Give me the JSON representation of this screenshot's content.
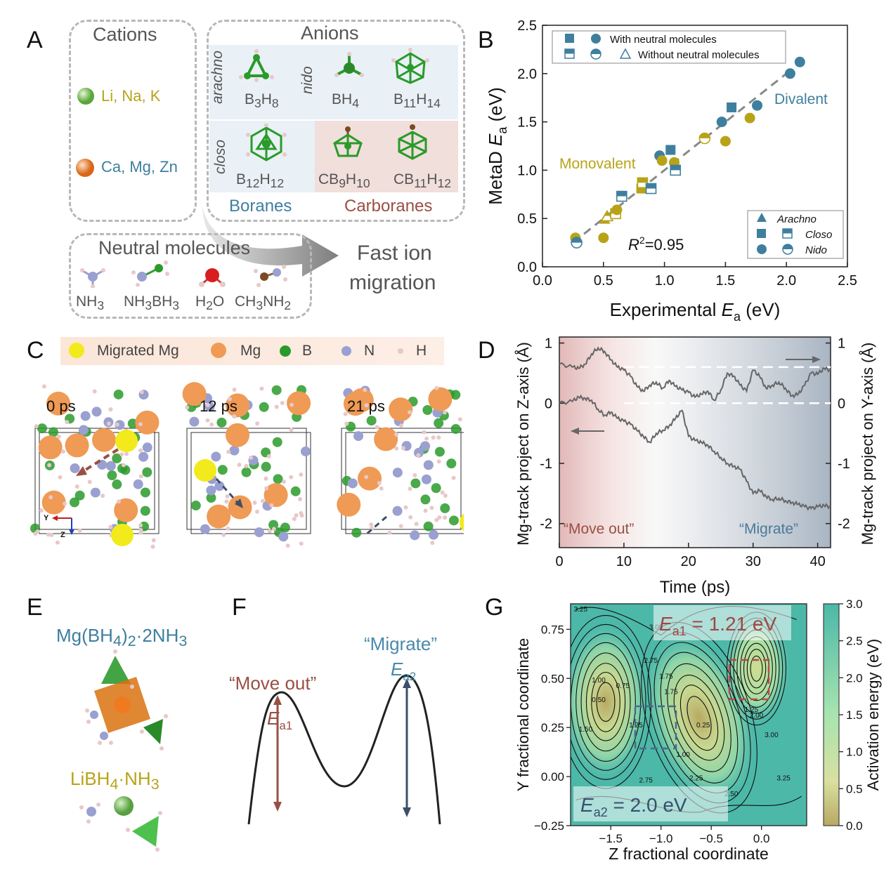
{
  "panel_labels": {
    "a": "A",
    "b": "B",
    "c": "C",
    "d": "D",
    "e": "E",
    "f": "F",
    "g": "G"
  },
  "panel_a": {
    "cations_title": "Cations",
    "cation_mono": "Li, Na, K",
    "cation_di": "Ca, Mg, Zn",
    "anions_title": "Anions",
    "row_arachno": "arachno",
    "row_nido": "nido",
    "row_closo": "closo",
    "anions": [
      {
        "base": "B",
        "sub1": "3",
        "mid": "H",
        "sub2": "8"
      },
      {
        "base": "BH",
        "sub1": "4",
        "mid": "",
        "sub2": ""
      },
      {
        "base": "B",
        "sub1": "11",
        "mid": "H",
        "sub2": "14"
      },
      {
        "base": "B",
        "sub1": "12",
        "mid": "H",
        "sub2": "12"
      },
      {
        "base": "CB",
        "sub1": "9",
        "mid": "H",
        "sub2": "10"
      },
      {
        "base": "CB",
        "sub1": "11",
        "mid": "H",
        "sub2": "12"
      }
    ],
    "boranes": "Boranes",
    "carboranes": "Carboranes",
    "neutral_title": "Neutral molecules",
    "neutral": [
      {
        "a": "NH",
        "s1": "3",
        "b": "",
        "s2": ""
      },
      {
        "a": "NH",
        "s1": "3",
        "b": "BH",
        "s2": "3"
      },
      {
        "a": "H",
        "s1": "2",
        "b": "O",
        "s2": ""
      },
      {
        "a": "CH",
        "s1": "3",
        "b": "NH",
        "s2": "2"
      }
    ],
    "fast_line1": "Fast ion",
    "fast_line2": "migration"
  },
  "panel_b": {
    "chart_data": {
      "type": "scatter",
      "xlabel_main": "Experimental ",
      "xlabel_var": "E",
      "xlabel_sub": "a",
      "xlabel_unit": " (eV)",
      "ylabel_main": "MetaD ",
      "ylabel_var": "E",
      "ylabel_sub": "a",
      "ylabel_unit": " (eV)",
      "xlim": [
        0,
        2.5
      ],
      "ylim": [
        0,
        2.5
      ],
      "xticks": [
        "0.0",
        "0.5",
        "1.0",
        "1.5",
        "2.0",
        "2.5"
      ],
      "yticks": [
        "0.0",
        "0.5",
        "1.0",
        "1.5",
        "2.0",
        "2.5"
      ],
      "r2_text_a": "R",
      "r2_text_b": "2",
      "r2_text_c": "=0.95",
      "label_monovalent": "Monovalent",
      "label_divalent": "Divalent",
      "legend_top": [
        "With neutral molecules",
        "Without neutral molecules"
      ],
      "legend_bottom": [
        "Arachno",
        "Closo",
        "Nido"
      ],
      "colors": {
        "mono": "#b8a318",
        "di": "#3e7f9e"
      },
      "fit_line": [
        [
          0.25,
          0.25
        ],
        [
          2.05,
          2.05
        ]
      ],
      "points": [
        {
          "x": 0.27,
          "y": 0.3,
          "shape": "circle",
          "fill": "full",
          "group": "mono"
        },
        {
          "x": 0.28,
          "y": 0.25,
          "shape": "circle",
          "fill": "half",
          "group": "di"
        },
        {
          "x": 0.5,
          "y": 0.3,
          "shape": "circle",
          "fill": "full",
          "group": "mono"
        },
        {
          "x": 0.51,
          "y": 0.49,
          "shape": "triangle",
          "fill": "full",
          "group": "mono"
        },
        {
          "x": 0.53,
          "y": 0.52,
          "shape": "triangle",
          "fill": "half",
          "group": "mono"
        },
        {
          "x": 0.6,
          "y": 0.55,
          "shape": "square",
          "fill": "half",
          "group": "mono"
        },
        {
          "x": 0.61,
          "y": 0.59,
          "shape": "circle",
          "fill": "full",
          "group": "mono"
        },
        {
          "x": 0.65,
          "y": 0.73,
          "shape": "square",
          "fill": "half",
          "group": "di"
        },
        {
          "x": 0.81,
          "y": 0.81,
          "shape": "square",
          "fill": "full",
          "group": "mono"
        },
        {
          "x": 0.82,
          "y": 0.87,
          "shape": "square",
          "fill": "half",
          "group": "mono"
        },
        {
          "x": 0.89,
          "y": 0.81,
          "shape": "square",
          "fill": "half",
          "group": "di"
        },
        {
          "x": 0.96,
          "y": 1.15,
          "shape": "circle",
          "fill": "full",
          "group": "di"
        },
        {
          "x": 0.98,
          "y": 1.1,
          "shape": "circle",
          "fill": "full",
          "group": "mono"
        },
        {
          "x": 1.05,
          "y": 1.21,
          "shape": "square",
          "fill": "full",
          "group": "di"
        },
        {
          "x": 1.08,
          "y": 1.08,
          "shape": "circle",
          "fill": "full",
          "group": "mono"
        },
        {
          "x": 1.09,
          "y": 1.0,
          "shape": "square",
          "fill": "half",
          "group": "di"
        },
        {
          "x": 1.33,
          "y": 1.33,
          "shape": "circle",
          "fill": "half",
          "group": "mono"
        },
        {
          "x": 1.47,
          "y": 1.5,
          "shape": "circle",
          "fill": "full",
          "group": "di"
        },
        {
          "x": 1.5,
          "y": 1.3,
          "shape": "circle",
          "fill": "full",
          "group": "mono"
        },
        {
          "x": 1.55,
          "y": 1.65,
          "shape": "square",
          "fill": "full",
          "group": "di"
        },
        {
          "x": 1.7,
          "y": 1.54,
          "shape": "circle",
          "fill": "full",
          "group": "mono"
        },
        {
          "x": 1.76,
          "y": 1.67,
          "shape": "circle",
          "fill": "full",
          "group": "di"
        },
        {
          "x": 2.03,
          "y": 2.0,
          "shape": "circle",
          "fill": "full",
          "group": "di"
        },
        {
          "x": 2.11,
          "y": 2.12,
          "shape": "circle",
          "fill": "full",
          "group": "di"
        }
      ]
    }
  },
  "panel_c": {
    "legend": [
      "Migrated Mg",
      "Mg",
      "B",
      "N",
      "H"
    ],
    "times": [
      "0 ps",
      "12 ps",
      "21 ps"
    ],
    "axis_y": "Y",
    "axis_z": "Z"
  },
  "panel_d": {
    "chart_data": {
      "type": "line",
      "xlabel": "Time (ps)",
      "ylabel_left": "Mg-track project on Z-axis (Å)",
      "ylabel_right": "Mg-track project on Y-axis (Å)",
      "xlim": [
        0,
        42
      ],
      "ylim": [
        -2.4,
        1.1
      ],
      "xticks": [
        "0",
        "10",
        "20",
        "30",
        "40"
      ],
      "yticks_left": [
        "1",
        "0",
        "-1",
        "-2"
      ],
      "yticks_right": [
        "1",
        "0",
        "-1",
        "-2"
      ],
      "label_move_out": "“Move out”",
      "label_migrate": "“Migrate”",
      "dashed_levels": [
        0.6,
        0.0
      ],
      "series": [
        {
          "axis": "right",
          "x": [
            0,
            2,
            3,
            4,
            5,
            6,
            7,
            8,
            9,
            10,
            11,
            12,
            13,
            14,
            15,
            16,
            17,
            18,
            19,
            20,
            21,
            22,
            23,
            24,
            25,
            26,
            27,
            28,
            29,
            30,
            31,
            32,
            33,
            34,
            35,
            36,
            37,
            38,
            39,
            40,
            41,
            42
          ],
          "y": [
            0.65,
            0.6,
            0.58,
            0.65,
            0.82,
            0.92,
            0.86,
            0.72,
            0.6,
            0.55,
            0.45,
            0.28,
            0.2,
            0.3,
            0.35,
            0.25,
            0.38,
            0.28,
            0.22,
            0.18,
            0.1,
            0.15,
            0.2,
            0.05,
            0.22,
            0.5,
            0.45,
            0.3,
            0.2,
            0.55,
            0.45,
            0.25,
            0.3,
            0.35,
            0.25,
            0.12,
            0.15,
            0.3,
            0.5,
            0.48,
            0.58,
            0.55
          ]
        },
        {
          "axis": "left",
          "x": [
            0,
            2,
            3,
            4,
            5,
            6,
            7,
            8,
            9,
            10,
            11,
            12,
            13,
            14,
            15,
            16,
            17,
            18,
            19,
            20,
            21,
            22,
            23,
            24,
            25,
            26,
            27,
            28,
            29,
            30,
            31,
            32,
            33,
            34,
            35,
            36,
            37,
            38,
            39,
            40,
            41,
            42
          ],
          "y": [
            0.0,
            0.03,
            0.1,
            0.08,
            0.05,
            -0.1,
            -0.2,
            -0.15,
            -0.25,
            -0.3,
            -0.35,
            -0.45,
            -0.55,
            -0.65,
            -0.5,
            -0.45,
            -0.38,
            -0.25,
            -0.12,
            -0.55,
            -0.62,
            -0.65,
            -0.7,
            -0.8,
            -0.9,
            -1.0,
            -1.05,
            -1.1,
            -1.3,
            -1.5,
            -1.45,
            -1.55,
            -1.6,
            -1.58,
            -1.62,
            -1.65,
            -1.68,
            -1.72,
            -1.75,
            -1.72,
            -1.7,
            -1.72
          ]
        }
      ],
      "colors": {
        "line": "#666666",
        "move_out_bg": "#d9a0a0",
        "migrate_bg": "#9aa8b8"
      }
    }
  },
  "panel_e": {
    "formula1": {
      "a": "Mg(BH",
      "s1": "4",
      "b": ")",
      "s2": "2",
      "c": "·2NH",
      "s3": "3"
    },
    "formula2": {
      "a": "LiBH",
      "s1": "4",
      "b": "·NH",
      "s2": "3"
    }
  },
  "panel_f": {
    "move_out": "“Move out”",
    "migrate": "“Migrate”",
    "ea1_var": "E",
    "ea1_sub": "a1",
    "ea2_var": "E",
    "ea2_sub": "a2"
  },
  "panel_g": {
    "chart_data": {
      "type": "heatmap",
      "xlabel": "Z fractional coordinate",
      "ylabel": "Y fractional coordinate",
      "colorbar_label": "Activation energy (eV)",
      "xlim": [
        -1.9,
        0.45
      ],
      "ylim": [
        -0.25,
        0.88
      ],
      "xticks": [
        "−1.5",
        "−1.0",
        "−0.5",
        "0.0"
      ],
      "yticks": [
        "0.75",
        "0.50",
        "0.25",
        "0.00",
        "−0.25"
      ],
      "cbar_ticks": [
        "3.0",
        "2.5",
        "2.0",
        "1.5",
        "1.0",
        "0.5",
        "0.0"
      ],
      "ea1_var": "E",
      "ea1_sub": "a1",
      "ea1_val": " = 1.21 eV",
      "ea2_var": "E",
      "ea2_sub": "a2",
      "ea2_val": " = 2.0 eV",
      "contour_labels": [
        "3.25",
        "3.00",
        "2.75",
        "1.75",
        "1.00",
        "0.50",
        "0.75",
        "1.50",
        "1.25",
        "0.25",
        "1.00",
        "2.25",
        "2.50",
        "2.75",
        "2.00",
        "3.00",
        "3.25",
        "1.25",
        "1.75"
      ],
      "minima": [
        {
          "x": -1.55,
          "y": 0.38,
          "value": 0.0
        },
        {
          "x": -0.62,
          "y": 0.3,
          "value": 0.0
        },
        {
          "x": -0.05,
          "y": 0.55,
          "value": 0.5
        }
      ]
    }
  }
}
